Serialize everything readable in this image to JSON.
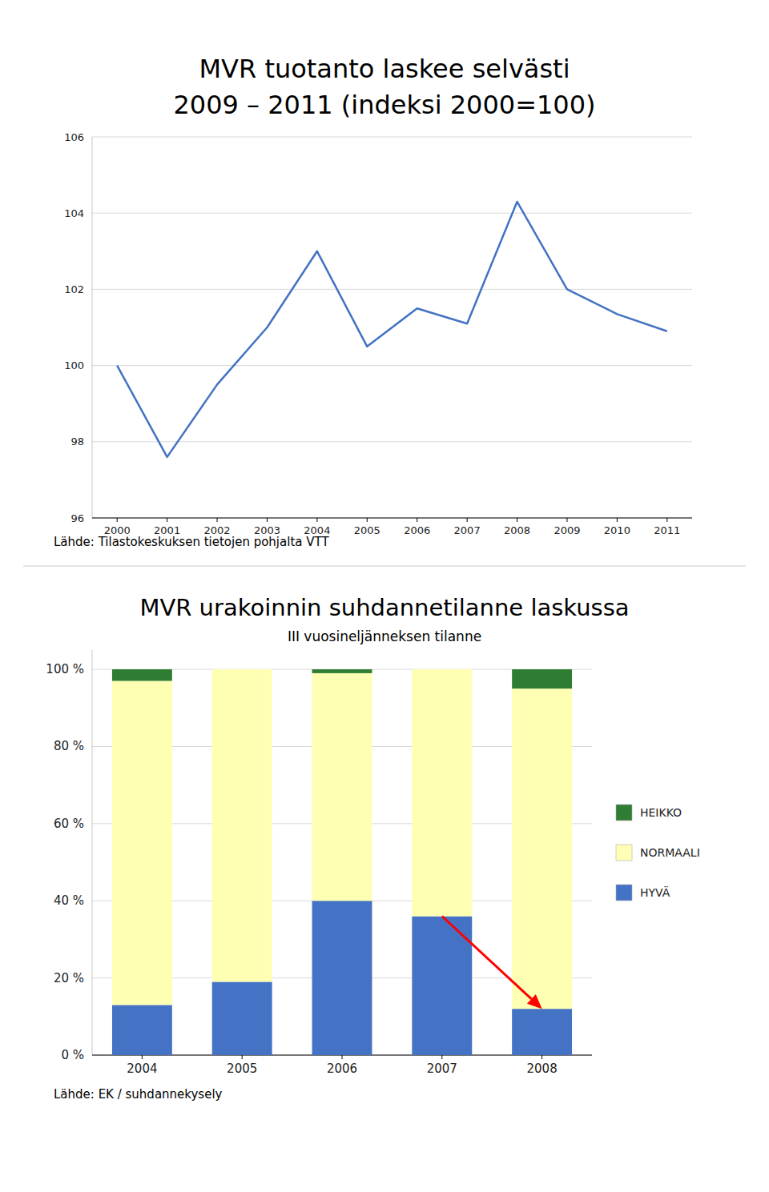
{
  "chart_data": [
    {
      "type": "line",
      "title": "MVR tuotanto laskee selvästi",
      "subtitle": "2009 – 2011 (indeksi 2000=100)",
      "source": "Lähde: Tilastokeskuksen tietojen pohjalta VTT",
      "x": [
        2000,
        2001,
        2002,
        2003,
        2004,
        2005,
        2006,
        2007,
        2008,
        2009,
        2010,
        2011
      ],
      "values": [
        100.0,
        97.6,
        99.5,
        101.0,
        103.0,
        100.5,
        101.5,
        101.1,
        104.3,
        102.0,
        101.35,
        100.9
      ],
      "color": "#4472C4",
      "xlim": [
        1999.5,
        2011.5
      ],
      "xticks": [
        2000,
        2001,
        2002,
        2003,
        2004,
        2005,
        2006,
        2007,
        2008,
        2009,
        2010,
        2011
      ],
      "ylim": [
        96,
        106
      ],
      "yticks": [
        96,
        98,
        100,
        102,
        104,
        106
      ],
      "grid": true
    },
    {
      "type": "bar",
      "title": "MVR urakoinnin suhdannetilanne laskussa",
      "subtitle": "III vuosineljänneksen tilanne",
      "source": "Lähde: EK / suhdannekysely",
      "categories": [
        "2004",
        "2005",
        "2006",
        "2007",
        "2008"
      ],
      "series": [
        {
          "name": "HYVÄ",
          "color": "#4472C4",
          "values": [
            13,
            19,
            40,
            36,
            12
          ]
        },
        {
          "name": "NORMAALI",
          "color": "#FFFFB3",
          "values": [
            84,
            81,
            59,
            64,
            83
          ]
        },
        {
          "name": "HEIKKO",
          "color": "#2E7D32",
          "values": [
            3,
            0,
            1,
            0,
            5
          ]
        }
      ],
      "stacked": true,
      "ylim": [
        0,
        105
      ],
      "yticks": [
        {
          "value": 0,
          "label": "0 %"
        },
        {
          "value": 20,
          "label": "20 %"
        },
        {
          "value": 40,
          "label": "40 %"
        },
        {
          "value": 60,
          "label": "60 %"
        },
        {
          "value": 80,
          "label": "80 %"
        },
        {
          "value": 100,
          "label": "100 %"
        }
      ],
      "grid": true,
      "legend": "right",
      "arrow": {
        "from": {
          "category": "2007",
          "value": 36
        },
        "to": {
          "category": "2008",
          "value": 12
        },
        "color": "red"
      }
    }
  ]
}
